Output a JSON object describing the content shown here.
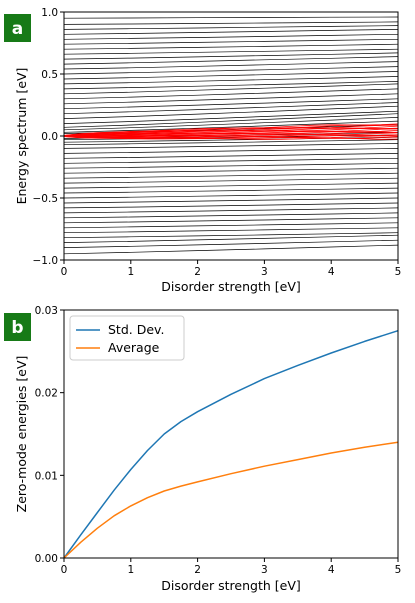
{
  "chart_data": [
    {
      "panel": "a",
      "type": "line",
      "xlabel": "Disorder strength [eV]",
      "ylabel": "Energy spectrum [eV]",
      "xlim": [
        0,
        5
      ],
      "ylim": [
        -1.0,
        1.0
      ],
      "xticks": [
        "0",
        "1",
        "2",
        "3",
        "4",
        "5"
      ],
      "yticks": [
        "−1.0",
        "−0.5",
        "0.0",
        "0.5",
        "1.0"
      ],
      "grid": false,
      "colors": {
        "bulk_levels": "#000000",
        "zero_modes": "#ff0000"
      },
      "bulk_levels_start": [
        -1.0,
        -0.95,
        -0.9,
        -0.86,
        -0.82,
        -0.78,
        -0.74,
        -0.7,
        -0.66,
        -0.62,
        -0.58,
        -0.54,
        -0.5,
        -0.46,
        -0.42,
        -0.38,
        -0.34,
        -0.3,
        -0.26,
        -0.22,
        -0.18,
        -0.14,
        -0.1,
        -0.07,
        -0.05,
        -0.03,
        -0.02,
        0.02,
        0.03,
        0.05,
        0.07,
        0.1,
        0.14,
        0.18,
        0.22,
        0.26,
        0.3,
        0.34,
        0.38,
        0.42,
        0.46,
        0.5,
        0.54,
        0.58,
        0.62,
        0.66,
        0.7,
        0.74,
        0.78,
        0.82,
        0.86,
        0.9,
        0.95,
        1.0
      ],
      "bulk_levels_end": [
        -1.05,
        -0.88,
        -0.84,
        -0.8,
        -0.78,
        -0.74,
        -0.7,
        -0.66,
        -0.62,
        -0.58,
        -0.54,
        -0.5,
        -0.46,
        -0.42,
        -0.38,
        -0.34,
        -0.3,
        -0.26,
        -0.22,
        -0.18,
        -0.14,
        -0.1,
        -0.06,
        -0.03,
        -0.01,
        0.01,
        0.03,
        0.09,
        0.12,
        0.15,
        0.18,
        0.2,
        0.24,
        0.27,
        0.3,
        0.34,
        0.38,
        0.42,
        0.44,
        0.48,
        0.52,
        0.56,
        0.6,
        0.64,
        0.67,
        0.7,
        0.74,
        0.78,
        0.82,
        0.86,
        0.89,
        0.92,
        0.96,
        1.0
      ],
      "zero_mode_band": {
        "x": [
          0,
          5
        ],
        "center_start": 0.0,
        "center_end": 0.04,
        "halfwidth_start": 0.005,
        "halfwidth_end": 0.06,
        "count": 16
      }
    },
    {
      "panel": "b",
      "type": "line",
      "xlabel": "Disorder strength [eV]",
      "ylabel": "Zero-mode energies [eV]",
      "xlim": [
        0,
        5
      ],
      "ylim": [
        0,
        0.03
      ],
      "xticks": [
        "0",
        "1",
        "2",
        "3",
        "4",
        "5"
      ],
      "yticks": [
        "0.00",
        "0.01",
        "0.02",
        "0.03"
      ],
      "grid": false,
      "legend": "top-left",
      "x": [
        0,
        0.25,
        0.5,
        0.75,
        1.0,
        1.25,
        1.5,
        1.75,
        2.0,
        2.5,
        3.0,
        3.5,
        4.0,
        4.5,
        5.0
      ],
      "series": [
        {
          "name": "Std. Dev.",
          "color": "#1f77b4",
          "values": [
            0.0,
            0.0028,
            0.0055,
            0.0082,
            0.0107,
            0.013,
            0.015,
            0.0165,
            0.0177,
            0.0198,
            0.0217,
            0.0233,
            0.0248,
            0.0262,
            0.0275
          ]
        },
        {
          "name": "Average",
          "color": "#ff7f0e",
          "values": [
            0.0,
            0.0019,
            0.0036,
            0.0051,
            0.0063,
            0.0073,
            0.0081,
            0.0087,
            0.0092,
            0.0102,
            0.0111,
            0.0119,
            0.0127,
            0.0134,
            0.014
          ]
        }
      ]
    }
  ]
}
